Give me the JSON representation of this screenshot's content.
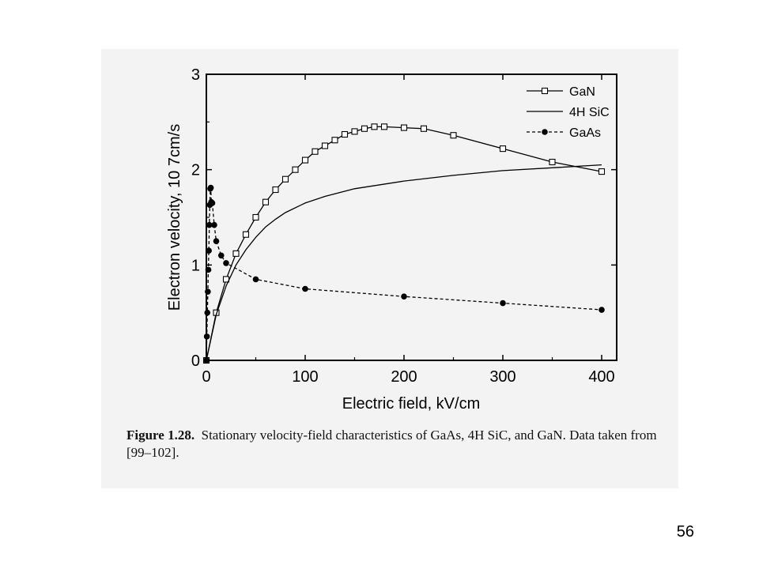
{
  "chart_data": {
    "type": "line",
    "xlabel": "Electric field, kV/cm",
    "ylabel": "Electron velocity, 10 7cm/s",
    "xlim": [
      0,
      415
    ],
    "ylim": [
      0,
      3
    ],
    "xticks": [
      0,
      100,
      200,
      300,
      400
    ],
    "yticks": [
      0,
      1,
      2,
      3
    ],
    "grid": false,
    "legend": "top-right",
    "series": [
      {
        "name": "GaN",
        "marker": "open-square",
        "line": "solid",
        "x": [
          0,
          10,
          20,
          30,
          40,
          50,
          60,
          70,
          80,
          90,
          100,
          110,
          120,
          130,
          140,
          150,
          160,
          170,
          180,
          200,
          220,
          250,
          300,
          350,
          400
        ],
        "y": [
          0,
          0.5,
          0.85,
          1.12,
          1.32,
          1.5,
          1.66,
          1.79,
          1.9,
          2.0,
          2.1,
          2.19,
          2.25,
          2.31,
          2.37,
          2.4,
          2.43,
          2.45,
          2.45,
          2.44,
          2.43,
          2.36,
          2.22,
          2.08,
          1.98
        ]
      },
      {
        "name": "4H SiC",
        "marker": "none",
        "line": "solid",
        "x": [
          0,
          10,
          20,
          30,
          40,
          50,
          60,
          70,
          80,
          100,
          120,
          150,
          200,
          250,
          300,
          350,
          400
        ],
        "y": [
          0,
          0.48,
          0.78,
          1.0,
          1.16,
          1.29,
          1.4,
          1.48,
          1.55,
          1.65,
          1.72,
          1.8,
          1.88,
          1.94,
          1.99,
          2.02,
          2.05
        ]
      },
      {
        "name": "GaAs",
        "marker": "filled-circle",
        "line": "dashed",
        "x": [
          0,
          0.5,
          1,
          1.5,
          2,
          2.5,
          3,
          3.5,
          4,
          4.5,
          5,
          6,
          8,
          10,
          15,
          20,
          50,
          100,
          200,
          300,
          400
        ],
        "y": [
          0,
          0.25,
          0.5,
          0.72,
          0.95,
          1.15,
          1.42,
          1.63,
          1.8,
          1.81,
          1.66,
          1.65,
          1.42,
          1.25,
          1.1,
          1.02,
          0.85,
          0.75,
          0.67,
          0.6,
          0.53
        ]
      }
    ]
  },
  "caption": {
    "label": "Figure 1.28.",
    "text": "Stationary velocity-field characteristics of GaAs, 4H SiC, and GaN. Data taken from [99–102]."
  },
  "page_number": "56"
}
